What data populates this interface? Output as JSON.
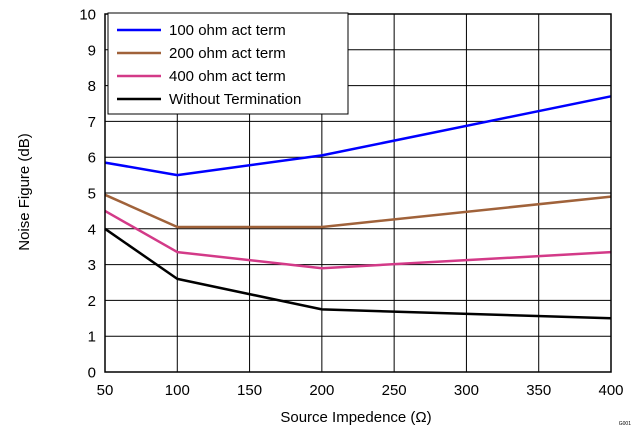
{
  "chart_data": {
    "type": "line",
    "title": "",
    "xlabel": "Source Impedence (Ω)",
    "ylabel": "Noise Figure (dB)",
    "xlim": [
      50,
      400
    ],
    "ylim": [
      0,
      10
    ],
    "xticks": [
      50,
      100,
      150,
      200,
      250,
      300,
      350,
      400
    ],
    "yticks": [
      0,
      1,
      2,
      3,
      4,
      5,
      6,
      7,
      8,
      9,
      10
    ],
    "grid": true,
    "legend_position": "top-left",
    "corner_mark": "G001",
    "series": [
      {
        "name": "100 ohm act term",
        "color": "#0000ff",
        "x": [
          50,
          100,
          200,
          400
        ],
        "y": [
          5.85,
          5.5,
          6.05,
          7.7
        ]
      },
      {
        "name": "200 ohm act term",
        "color": "#a0623a",
        "x": [
          50,
          100,
          200,
          400
        ],
        "y": [
          4.95,
          4.05,
          4.05,
          4.9
        ]
      },
      {
        "name": "400 ohm act term",
        "color": "#d33a88",
        "x": [
          50,
          100,
          200,
          400
        ],
        "y": [
          4.5,
          3.35,
          2.9,
          3.35
        ]
      },
      {
        "name": "Without Termination",
        "color": "#000000",
        "x": [
          50,
          100,
          200,
          400
        ],
        "y": [
          4.0,
          2.6,
          1.75,
          1.5
        ]
      }
    ]
  }
}
